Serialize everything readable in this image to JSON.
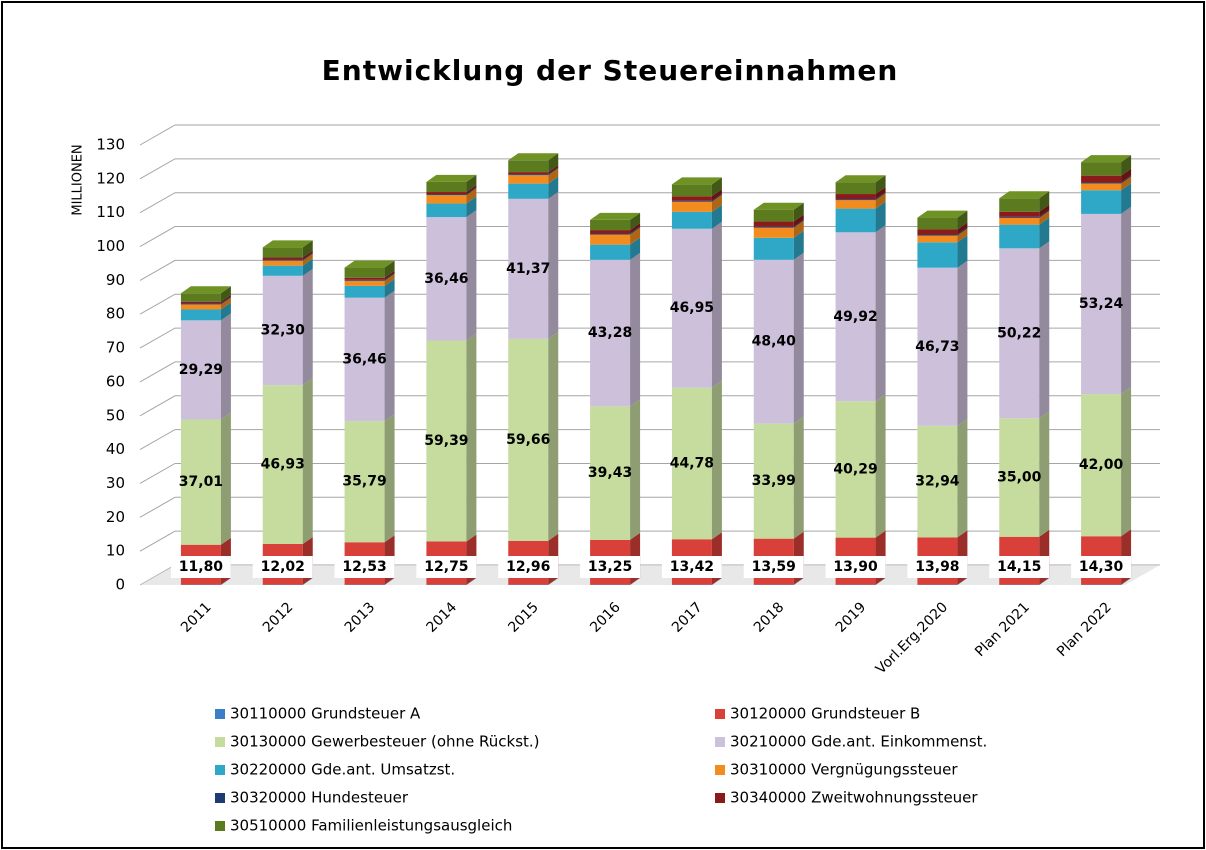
{
  "chart_data": {
    "type": "bar3d_stacked",
    "title": "Entwicklung der Steuereinnahmen",
    "y_label": "MILLIONEN",
    "categories": [
      "2011",
      "2012",
      "2013",
      "2014",
      "2015",
      "2016",
      "2017",
      "2018",
      "2019",
      "Vorl.Erg.2020",
      "Plan 2021",
      "Plan 2022"
    ],
    "ylim": [
      0,
      130
    ],
    "yticks": [
      0,
      10,
      20,
      30,
      40,
      50,
      60,
      70,
      80,
      90,
      100,
      110,
      120,
      130
    ],
    "grid": true,
    "legend": "bottom",
    "series": [
      {
        "name": "30110000 Grundsteuer A",
        "color": "#3a7dc9",
        "values": [
          0.1,
          0.1,
          0.1,
          0.1,
          0.1,
          0.1,
          0.1,
          0.1,
          0.1,
          0.1,
          0.1,
          0.1
        ]
      },
      {
        "name": "30120000 Grundsteuer B",
        "color": "#d9403a",
        "values": [
          11.8,
          12.02,
          12.53,
          12.75,
          12.96,
          13.25,
          13.42,
          13.59,
          13.9,
          13.98,
          14.15,
          14.3
        ],
        "value_labels": [
          "11,80",
          "12,02",
          "12,53",
          "12,75",
          "12,96",
          "13,25",
          "13,42",
          "13,59",
          "13,90",
          "13,98",
          "14,15",
          "14,30"
        ]
      },
      {
        "name": "30130000 Gewerbesteuer (ohne Rückst.)",
        "color": "#c5dc9e",
        "values": [
          37.01,
          46.93,
          35.79,
          59.39,
          59.66,
          39.43,
          44.78,
          33.99,
          40.29,
          32.94,
          35.0,
          42.0
        ],
        "value_labels": [
          "37,01",
          "46,93",
          "35,79",
          "59,39",
          "59,66",
          "39,43",
          "44,78",
          "33,99",
          "40,29",
          "32,94",
          "35,00",
          "42,00"
        ]
      },
      {
        "name": "30210000 Gde.ant. Einkommenst.",
        "color": "#ccc0da",
        "values": [
          29.29,
          32.3,
          36.46,
          36.46,
          41.37,
          43.28,
          46.95,
          48.4,
          49.92,
          46.73,
          50.22,
          53.24
        ],
        "value_labels": [
          "29,29",
          "32,30",
          "36,46",
          "36,46",
          "41,37",
          "43,28",
          "46,95",
          "48,40",
          "49,92",
          "46,73",
          "50,22",
          "53,24"
        ]
      },
      {
        "name": "30220000 Gde.ant. Umsatzst.",
        "color": "#2fa8c8",
        "values": [
          3.2,
          3,
          3.5,
          4,
          4.5,
          4.5,
          5,
          6.5,
          7,
          7.5,
          7,
          7
        ]
      },
      {
        "name": "30310000 Vergnügungssteuer",
        "color": "#f28c1e",
        "values": [
          1.5,
          1.5,
          1.5,
          2.5,
          2.5,
          3,
          3,
          3,
          2.5,
          2,
          2,
          2
        ]
      },
      {
        "name": "30320000 Hundesteuer",
        "color": "#1f3b73",
        "values": [
          0.3,
          0.3,
          0.3,
          0.3,
          0.3,
          0.3,
          0.3,
          0.3,
          0.3,
          0.3,
          0.3,
          0.3
        ]
      },
      {
        "name": "30340000 Zweitwohnungssteuer",
        "color": "#8b1a1a",
        "values": [
          0.5,
          0.6,
          0.6,
          0.6,
          0.6,
          1,
          1.3,
          1.5,
          1.5,
          1.5,
          1.5,
          2
        ]
      },
      {
        "name": "30510000 Familienleistungsausgleich",
        "color": "#5c7a1e",
        "values": [
          2.5,
          3,
          3,
          3,
          3.5,
          3,
          3.5,
          3.5,
          3.5,
          3.5,
          4,
          4
        ]
      }
    ]
  }
}
